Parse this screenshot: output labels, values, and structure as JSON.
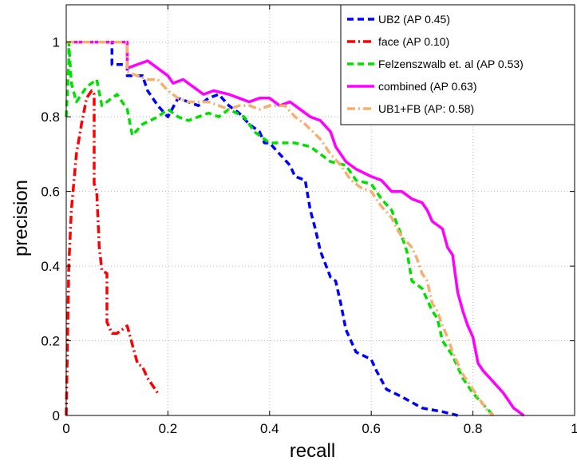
{
  "chart_data": {
    "type": "line",
    "xlabel": "recall",
    "ylabel": "precision",
    "xlim": [
      0,
      1
    ],
    "ylim": [
      0,
      1.1
    ],
    "xticks": [
      "0",
      "0.2",
      "0.4",
      "0.6",
      "0.8",
      "1"
    ],
    "yticks": [
      "0",
      "0.2",
      "0.4",
      "0.6",
      "0.8",
      "1"
    ],
    "grid": true,
    "legend_position": "top-right",
    "series": [
      {
        "name": "UB2 (AP 0.45)",
        "color": "#0000ff",
        "dash": "dashed",
        "points": [
          [
            0.0,
            1.0
          ],
          [
            0.09,
            1.0
          ],
          [
            0.09,
            0.94
          ],
          [
            0.12,
            0.94
          ],
          [
            0.12,
            0.91
          ],
          [
            0.15,
            0.91
          ],
          [
            0.16,
            0.87
          ],
          [
            0.17,
            0.85
          ],
          [
            0.18,
            0.83
          ],
          [
            0.2,
            0.8
          ],
          [
            0.22,
            0.85
          ],
          [
            0.24,
            0.84
          ],
          [
            0.26,
            0.83
          ],
          [
            0.28,
            0.85
          ],
          [
            0.3,
            0.86
          ],
          [
            0.32,
            0.83
          ],
          [
            0.34,
            0.81
          ],
          [
            0.36,
            0.78
          ],
          [
            0.38,
            0.76
          ],
          [
            0.39,
            0.73
          ],
          [
            0.4,
            0.73
          ],
          [
            0.42,
            0.7
          ],
          [
            0.44,
            0.67
          ],
          [
            0.45,
            0.64
          ],
          [
            0.47,
            0.63
          ],
          [
            0.48,
            0.55
          ],
          [
            0.49,
            0.5
          ],
          [
            0.5,
            0.44
          ],
          [
            0.52,
            0.37
          ],
          [
            0.53,
            0.36
          ],
          [
            0.54,
            0.3
          ],
          [
            0.55,
            0.23
          ],
          [
            0.57,
            0.17
          ],
          [
            0.6,
            0.15
          ],
          [
            0.61,
            0.12
          ],
          [
            0.63,
            0.07
          ],
          [
            0.66,
            0.05
          ],
          [
            0.7,
            0.02
          ],
          [
            0.74,
            0.01
          ],
          [
            0.77,
            0.0
          ]
        ]
      },
      {
        "name": "face (AP 0.10)",
        "color": "#ff0000",
        "dash": "dashdot",
        "points": [
          [
            0.0,
            0.0
          ],
          [
            0.005,
            0.4
          ],
          [
            0.01,
            0.55
          ],
          [
            0.02,
            0.7
          ],
          [
            0.03,
            0.78
          ],
          [
            0.04,
            0.85
          ],
          [
            0.05,
            0.87
          ],
          [
            0.055,
            0.86
          ],
          [
            0.055,
            0.62
          ],
          [
            0.06,
            0.6
          ],
          [
            0.065,
            0.45
          ],
          [
            0.07,
            0.39
          ],
          [
            0.08,
            0.38
          ],
          [
            0.08,
            0.25
          ],
          [
            0.09,
            0.22
          ],
          [
            0.1,
            0.22
          ],
          [
            0.11,
            0.23
          ],
          [
            0.12,
            0.24
          ],
          [
            0.13,
            0.19
          ],
          [
            0.14,
            0.14
          ],
          [
            0.15,
            0.13
          ],
          [
            0.16,
            0.1
          ],
          [
            0.17,
            0.08
          ],
          [
            0.18,
            0.06
          ]
        ]
      },
      {
        "name": "Felzenszwalb et. al (AP 0.53)",
        "color": "#00e000",
        "dash": "dashed",
        "points": [
          [
            0.0,
            0.8
          ],
          [
            0.005,
            0.95
          ],
          [
            0.005,
            1.0
          ],
          [
            0.01,
            0.89
          ],
          [
            0.02,
            0.84
          ],
          [
            0.03,
            0.86
          ],
          [
            0.04,
            0.88
          ],
          [
            0.06,
            0.9
          ],
          [
            0.07,
            0.83
          ],
          [
            0.1,
            0.86
          ],
          [
            0.12,
            0.82
          ],
          [
            0.13,
            0.75
          ],
          [
            0.15,
            0.78
          ],
          [
            0.18,
            0.8
          ],
          [
            0.2,
            0.82
          ],
          [
            0.22,
            0.8
          ],
          [
            0.24,
            0.79
          ],
          [
            0.26,
            0.8
          ],
          [
            0.28,
            0.81
          ],
          [
            0.3,
            0.8
          ],
          [
            0.32,
            0.82
          ],
          [
            0.35,
            0.8
          ],
          [
            0.37,
            0.76
          ],
          [
            0.4,
            0.73
          ],
          [
            0.45,
            0.73
          ],
          [
            0.48,
            0.72
          ],
          [
            0.5,
            0.7
          ],
          [
            0.52,
            0.68
          ],
          [
            0.55,
            0.67
          ],
          [
            0.57,
            0.63
          ],
          [
            0.6,
            0.62
          ],
          [
            0.62,
            0.58
          ],
          [
            0.64,
            0.55
          ],
          [
            0.66,
            0.48
          ],
          [
            0.67,
            0.44
          ],
          [
            0.68,
            0.36
          ],
          [
            0.7,
            0.34
          ],
          [
            0.72,
            0.28
          ],
          [
            0.73,
            0.26
          ],
          [
            0.74,
            0.2
          ],
          [
            0.76,
            0.16
          ],
          [
            0.77,
            0.13
          ],
          [
            0.78,
            0.1
          ],
          [
            0.8,
            0.06
          ],
          [
            0.82,
            0.03
          ],
          [
            0.84,
            0.0
          ]
        ]
      },
      {
        "name": "combined (AP 0.63)",
        "color": "#ff00ff",
        "dash": "solid",
        "points": [
          [
            0.0,
            1.0
          ],
          [
            0.12,
            1.0
          ],
          [
            0.12,
            0.93
          ],
          [
            0.16,
            0.95
          ],
          [
            0.18,
            0.93
          ],
          [
            0.2,
            0.91
          ],
          [
            0.21,
            0.89
          ],
          [
            0.23,
            0.9
          ],
          [
            0.25,
            0.88
          ],
          [
            0.27,
            0.86
          ],
          [
            0.29,
            0.87
          ],
          [
            0.32,
            0.86
          ],
          [
            0.34,
            0.85
          ],
          [
            0.36,
            0.84
          ],
          [
            0.38,
            0.85
          ],
          [
            0.4,
            0.85
          ],
          [
            0.42,
            0.83
          ],
          [
            0.44,
            0.84
          ],
          [
            0.46,
            0.82
          ],
          [
            0.48,
            0.8
          ],
          [
            0.5,
            0.79
          ],
          [
            0.52,
            0.76
          ],
          [
            0.53,
            0.72
          ],
          [
            0.55,
            0.68
          ],
          [
            0.57,
            0.66
          ],
          [
            0.6,
            0.64
          ],
          [
            0.62,
            0.63
          ],
          [
            0.64,
            0.6
          ],
          [
            0.66,
            0.6
          ],
          [
            0.68,
            0.58
          ],
          [
            0.7,
            0.57
          ],
          [
            0.71,
            0.55
          ],
          [
            0.72,
            0.52
          ],
          [
            0.74,
            0.5
          ],
          [
            0.75,
            0.45
          ],
          [
            0.76,
            0.43
          ],
          [
            0.77,
            0.33
          ],
          [
            0.78,
            0.28
          ],
          [
            0.79,
            0.24
          ],
          [
            0.8,
            0.21
          ],
          [
            0.81,
            0.14
          ],
          [
            0.82,
            0.12
          ],
          [
            0.84,
            0.09
          ],
          [
            0.86,
            0.06
          ],
          [
            0.88,
            0.02
          ],
          [
            0.9,
            0.0
          ]
        ]
      },
      {
        "name": "UB1+FB (AP: 0.58)",
        "color": "#f5b070",
        "dash": "dashdot",
        "points": [
          [
            0.0,
            1.0
          ],
          [
            0.12,
            1.0
          ],
          [
            0.12,
            0.92
          ],
          [
            0.16,
            0.9
          ],
          [
            0.18,
            0.9
          ],
          [
            0.2,
            0.87
          ],
          [
            0.22,
            0.85
          ],
          [
            0.24,
            0.84
          ],
          [
            0.26,
            0.84
          ],
          [
            0.28,
            0.84
          ],
          [
            0.3,
            0.83
          ],
          [
            0.32,
            0.82
          ],
          [
            0.34,
            0.83
          ],
          [
            0.36,
            0.83
          ],
          [
            0.38,
            0.82
          ],
          [
            0.4,
            0.83
          ],
          [
            0.43,
            0.83
          ],
          [
            0.45,
            0.8
          ],
          [
            0.47,
            0.78
          ],
          [
            0.5,
            0.74
          ],
          [
            0.52,
            0.7
          ],
          [
            0.54,
            0.67
          ],
          [
            0.56,
            0.63
          ],
          [
            0.58,
            0.61
          ],
          [
            0.6,
            0.6
          ],
          [
            0.62,
            0.56
          ],
          [
            0.64,
            0.53
          ],
          [
            0.65,
            0.5
          ],
          [
            0.66,
            0.48
          ],
          [
            0.68,
            0.45
          ],
          [
            0.69,
            0.42
          ],
          [
            0.7,
            0.38
          ],
          [
            0.71,
            0.36
          ],
          [
            0.72,
            0.3
          ],
          [
            0.73,
            0.28
          ],
          [
            0.74,
            0.24
          ],
          [
            0.75,
            0.21
          ],
          [
            0.76,
            0.17
          ],
          [
            0.77,
            0.14
          ],
          [
            0.78,
            0.11
          ],
          [
            0.8,
            0.07
          ],
          [
            0.82,
            0.03
          ],
          [
            0.83,
            0.01
          ],
          [
            0.84,
            0.0
          ]
        ]
      }
    ]
  }
}
